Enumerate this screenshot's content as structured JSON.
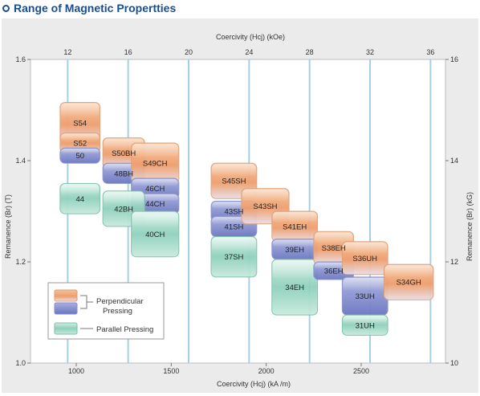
{
  "page_title": "Range of Magnetic Propertties",
  "colors": {
    "frame_background": "#ebebeb",
    "plot_background": "#ffffff",
    "gridline": "#a6cfe6",
    "perpendicular_light": "#f7c49b",
    "perpendicular_mid": "#ef9f6b",
    "perpendicular_blue": "#7d88cc",
    "parallel": "#8fd0bc"
  },
  "chart_data": {
    "type": "range-box",
    "top_axis": {
      "label": "Coercivity (Hcj) (kOe)",
      "ticks": [
        12,
        16,
        20,
        24,
        28,
        32,
        36
      ]
    },
    "bottom_axis": {
      "label": "Coercivity (Hcj) (kA /m)",
      "ticks": [
        1000,
        1500,
        2000,
        2500
      ],
      "range": [
        800,
        2850
      ]
    },
    "left_axis": {
      "label": "Remanence (Br) (T)",
      "ticks": [
        1.0,
        1.2,
        1.4,
        1.6
      ],
      "range": [
        1.0,
        1.6
      ]
    },
    "right_axis": {
      "label": "Remanence (Br) (kG)",
      "ticks": [
        10,
        12,
        14,
        16
      ]
    },
    "grades": [
      {
        "name": "S54",
        "process": "perpendicular",
        "hcj": [
          915,
          1125
        ],
        "br": [
          1.435,
          1.515
        ]
      },
      {
        "name": "S52",
        "process": "perpendicular",
        "hcj": [
          915,
          1125
        ],
        "br": [
          1.415,
          1.455
        ]
      },
      {
        "name": "50",
        "process": "perpendicular",
        "hcj": [
          915,
          1125
        ],
        "br": [
          1.395,
          1.425
        ]
      },
      {
        "name": "S50BH",
        "process": "perpendicular",
        "hcj": [
          1140,
          1360
        ],
        "br": [
          1.385,
          1.445
        ]
      },
      {
        "name": "48BH",
        "process": "perpendicular",
        "hcj": [
          1140,
          1360
        ],
        "br": [
          1.355,
          1.395
        ]
      },
      {
        "name": "S49CH",
        "process": "perpendicular",
        "hcj": [
          1290,
          1540
        ],
        "br": [
          1.355,
          1.435
        ]
      },
      {
        "name": "46CH",
        "process": "perpendicular",
        "hcj": [
          1290,
          1540
        ],
        "br": [
          1.325,
          1.365
        ]
      },
      {
        "name": "44CH",
        "process": "perpendicular",
        "hcj": [
          1290,
          1540
        ],
        "br": [
          1.295,
          1.335
        ]
      },
      {
        "name": "44",
        "process": "parallel",
        "hcj": [
          915,
          1125
        ],
        "br": [
          1.295,
          1.355
        ]
      },
      {
        "name": "42BH",
        "process": "parallel",
        "hcj": [
          1140,
          1360
        ],
        "br": [
          1.27,
          1.34
        ]
      },
      {
        "name": "40CH",
        "process": "parallel",
        "hcj": [
          1290,
          1540
        ],
        "br": [
          1.21,
          1.3
        ]
      },
      {
        "name": "S45SH",
        "process": "perpendicular",
        "hcj": [
          1710,
          1950
        ],
        "br": [
          1.325,
          1.395
        ]
      },
      {
        "name": "43SH",
        "process": "perpendicular",
        "hcj": [
          1710,
          1950
        ],
        "br": [
          1.28,
          1.32
        ]
      },
      {
        "name": "41SH",
        "process": "perpendicular",
        "hcj": [
          1710,
          1950
        ],
        "br": [
          1.25,
          1.29
        ]
      },
      {
        "name": "37SH",
        "process": "parallel",
        "hcj": [
          1710,
          1950
        ],
        "br": [
          1.17,
          1.25
        ]
      },
      {
        "name": "S43SH",
        "process": "perpendicular",
        "hcj": [
          1870,
          2120
        ],
        "br": [
          1.275,
          1.345
        ]
      },
      {
        "name": "S41EH",
        "process": "perpendicular",
        "hcj": [
          2030,
          2270
        ],
        "br": [
          1.24,
          1.3
        ]
      },
      {
        "name": "39EH",
        "process": "perpendicular",
        "hcj": [
          2030,
          2270
        ],
        "br": [
          1.205,
          1.245
        ]
      },
      {
        "name": "34EH",
        "process": "parallel",
        "hcj": [
          2030,
          2270
        ],
        "br": [
          1.095,
          1.205
        ]
      },
      {
        "name": "S38EH",
        "process": "perpendicular",
        "hcj": [
          2250,
          2460
        ],
        "br": [
          1.195,
          1.26
        ]
      },
      {
        "name": "36EH",
        "process": "perpendicular",
        "hcj": [
          2250,
          2460
        ],
        "br": [
          1.165,
          1.2
        ]
      },
      {
        "name": "S36UH",
        "process": "perpendicular",
        "hcj": [
          2400,
          2640
        ],
        "br": [
          1.175,
          1.24
        ]
      },
      {
        "name": "33UH",
        "process": "perpendicular",
        "hcj": [
          2400,
          2640
        ],
        "br": [
          1.095,
          1.17
        ]
      },
      {
        "name": "31UH",
        "process": "parallel",
        "hcj": [
          2400,
          2640
        ],
        "br": [
          1.055,
          1.095
        ]
      },
      {
        "name": "S34GH",
        "process": "perpendicular",
        "hcj": [
          2620,
          2880
        ],
        "br": [
          1.125,
          1.195
        ]
      }
    ],
    "legend": {
      "position": "bottom-left",
      "items": [
        {
          "label": "Perpendicular Pressing",
          "label_lines": [
            "Perpendicular",
            "Pressing"
          ],
          "process": "perpendicular"
        },
        {
          "label": "Parallel Pressing",
          "process": "parallel"
        }
      ]
    }
  }
}
